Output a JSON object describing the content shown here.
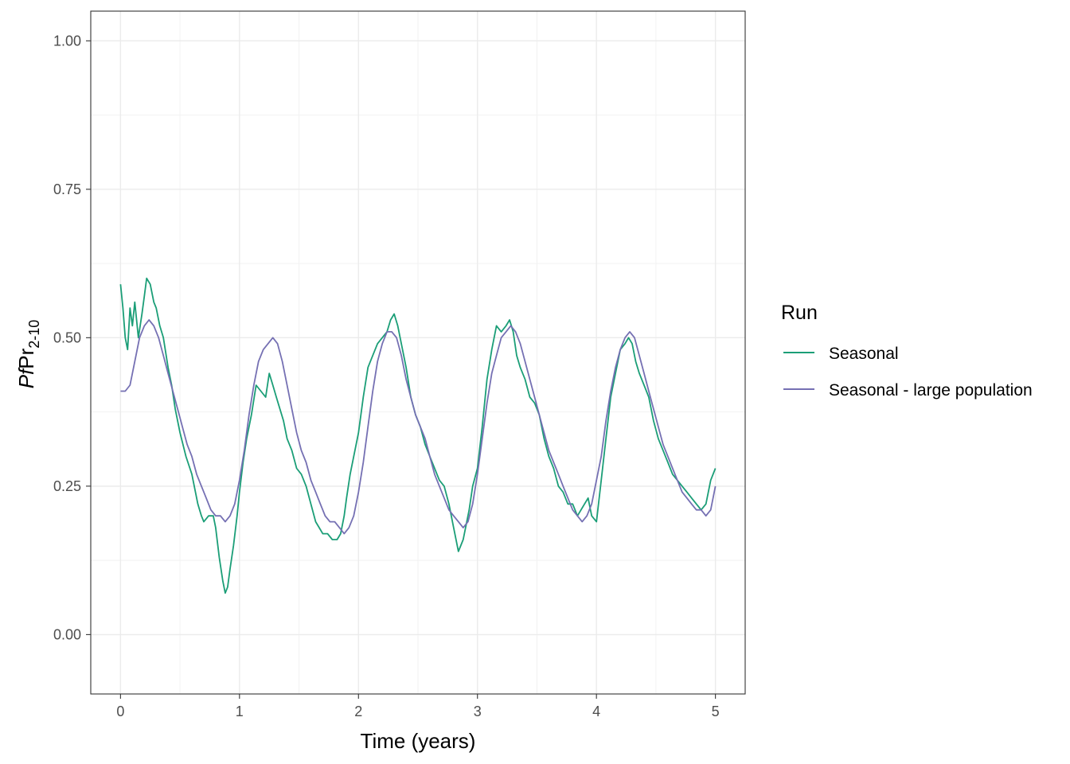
{
  "chart_data": {
    "type": "line",
    "xlabel": "Time (years)",
    "ylabel": {
      "italic": "Pf",
      "main": "Pr",
      "sub": "2-10"
    },
    "xlim": [
      -0.25,
      5.25
    ],
    "ylim": [
      -0.1,
      1.05
    ],
    "x_ticks": [
      0,
      1,
      2,
      3,
      4,
      5
    ],
    "x_tick_labels": [
      "0",
      "1",
      "2",
      "3",
      "4",
      "5"
    ],
    "y_ticks": [
      0,
      0.25,
      0.5,
      0.75,
      1.0
    ],
    "y_tick_labels": [
      "0.00",
      "0.25",
      "0.50",
      "0.75",
      "1.00"
    ],
    "grid": true,
    "legend": {
      "title": "Run",
      "position": "right"
    },
    "series": [
      {
        "name": "Seasonal",
        "color": "#1b9e77",
        "x": [
          0.0,
          0.02,
          0.04,
          0.06,
          0.08,
          0.1,
          0.12,
          0.15,
          0.18,
          0.2,
          0.22,
          0.25,
          0.28,
          0.3,
          0.33,
          0.36,
          0.4,
          0.43,
          0.46,
          0.5,
          0.55,
          0.6,
          0.65,
          0.68,
          0.7,
          0.74,
          0.78,
          0.8,
          0.83,
          0.86,
          0.88,
          0.9,
          0.92,
          0.95,
          0.98,
          1.0,
          1.03,
          1.06,
          1.1,
          1.14,
          1.18,
          1.22,
          1.25,
          1.28,
          1.31,
          1.34,
          1.37,
          1.4,
          1.44,
          1.48,
          1.52,
          1.56,
          1.6,
          1.64,
          1.67,
          1.7,
          1.74,
          1.78,
          1.82,
          1.85,
          1.88,
          1.9,
          1.93,
          1.96,
          2.0,
          2.04,
          2.08,
          2.12,
          2.16,
          2.2,
          2.24,
          2.27,
          2.3,
          2.33,
          2.36,
          2.4,
          2.44,
          2.48,
          2.52,
          2.56,
          2.6,
          2.64,
          2.68,
          2.72,
          2.76,
          2.8,
          2.84,
          2.86,
          2.88,
          2.9,
          2.93,
          2.96,
          3.0,
          3.04,
          3.08,
          3.12,
          3.16,
          3.2,
          3.24,
          3.27,
          3.3,
          3.33,
          3.36,
          3.4,
          3.44,
          3.48,
          3.52,
          3.56,
          3.6,
          3.64,
          3.68,
          3.72,
          3.76,
          3.8,
          3.84,
          3.87,
          3.9,
          3.93,
          3.96,
          4.0,
          4.04,
          4.08,
          4.12,
          4.16,
          4.2,
          4.24,
          4.27,
          4.3,
          4.33,
          4.36,
          4.4,
          4.44,
          4.48,
          4.52,
          4.56,
          4.6,
          4.64,
          4.68,
          4.72,
          4.76,
          4.8,
          4.84,
          4.88,
          4.92,
          4.96,
          5.0
        ],
        "y": [
          0.59,
          0.55,
          0.5,
          0.48,
          0.55,
          0.52,
          0.56,
          0.5,
          0.54,
          0.57,
          0.6,
          0.59,
          0.56,
          0.55,
          0.52,
          0.5,
          0.45,
          0.42,
          0.38,
          0.34,
          0.3,
          0.27,
          0.22,
          0.2,
          0.19,
          0.2,
          0.2,
          0.18,
          0.13,
          0.09,
          0.07,
          0.08,
          0.11,
          0.15,
          0.2,
          0.24,
          0.29,
          0.33,
          0.37,
          0.42,
          0.41,
          0.4,
          0.44,
          0.42,
          0.4,
          0.38,
          0.36,
          0.33,
          0.31,
          0.28,
          0.27,
          0.25,
          0.22,
          0.19,
          0.18,
          0.17,
          0.17,
          0.16,
          0.16,
          0.17,
          0.2,
          0.23,
          0.27,
          0.3,
          0.34,
          0.4,
          0.45,
          0.47,
          0.49,
          0.5,
          0.51,
          0.53,
          0.54,
          0.52,
          0.49,
          0.45,
          0.4,
          0.37,
          0.35,
          0.32,
          0.3,
          0.28,
          0.26,
          0.25,
          0.22,
          0.18,
          0.14,
          0.15,
          0.16,
          0.18,
          0.21,
          0.25,
          0.28,
          0.35,
          0.43,
          0.48,
          0.52,
          0.51,
          0.52,
          0.53,
          0.51,
          0.47,
          0.45,
          0.43,
          0.4,
          0.39,
          0.37,
          0.33,
          0.3,
          0.28,
          0.25,
          0.24,
          0.22,
          0.22,
          0.2,
          0.21,
          0.22,
          0.23,
          0.2,
          0.19,
          0.26,
          0.33,
          0.4,
          0.44,
          0.48,
          0.49,
          0.5,
          0.49,
          0.46,
          0.44,
          0.42,
          0.4,
          0.36,
          0.33,
          0.31,
          0.29,
          0.27,
          0.26,
          0.25,
          0.24,
          0.23,
          0.22,
          0.21,
          0.22,
          0.26,
          0.28
        ]
      },
      {
        "name": "Seasonal - large population",
        "color": "#7570b3",
        "x": [
          0.0,
          0.04,
          0.08,
          0.12,
          0.16,
          0.2,
          0.24,
          0.28,
          0.32,
          0.36,
          0.4,
          0.44,
          0.48,
          0.52,
          0.56,
          0.6,
          0.64,
          0.68,
          0.72,
          0.76,
          0.8,
          0.84,
          0.88,
          0.92,
          0.96,
          1.0,
          1.04,
          1.08,
          1.12,
          1.16,
          1.2,
          1.24,
          1.28,
          1.32,
          1.36,
          1.4,
          1.44,
          1.48,
          1.52,
          1.56,
          1.6,
          1.64,
          1.68,
          1.72,
          1.76,
          1.8,
          1.84,
          1.88,
          1.92,
          1.96,
          2.0,
          2.04,
          2.08,
          2.12,
          2.16,
          2.2,
          2.24,
          2.28,
          2.32,
          2.36,
          2.4,
          2.44,
          2.48,
          2.52,
          2.56,
          2.6,
          2.64,
          2.68,
          2.72,
          2.76,
          2.8,
          2.84,
          2.88,
          2.92,
          2.96,
          3.0,
          3.04,
          3.08,
          3.12,
          3.16,
          3.2,
          3.24,
          3.28,
          3.32,
          3.36,
          3.4,
          3.44,
          3.48,
          3.52,
          3.56,
          3.6,
          3.64,
          3.68,
          3.72,
          3.76,
          3.8,
          3.84,
          3.88,
          3.92,
          3.96,
          4.0,
          4.04,
          4.08,
          4.12,
          4.16,
          4.2,
          4.24,
          4.28,
          4.32,
          4.36,
          4.4,
          4.44,
          4.48,
          4.52,
          4.56,
          4.6,
          4.64,
          4.68,
          4.72,
          4.76,
          4.8,
          4.84,
          4.88,
          4.92,
          4.96,
          5.0
        ],
        "y": [
          0.41,
          0.41,
          0.42,
          0.46,
          0.5,
          0.52,
          0.53,
          0.52,
          0.5,
          0.47,
          0.44,
          0.41,
          0.38,
          0.35,
          0.32,
          0.3,
          0.27,
          0.25,
          0.23,
          0.21,
          0.2,
          0.2,
          0.19,
          0.2,
          0.22,
          0.26,
          0.31,
          0.37,
          0.42,
          0.46,
          0.48,
          0.49,
          0.5,
          0.49,
          0.46,
          0.42,
          0.38,
          0.34,
          0.31,
          0.29,
          0.26,
          0.24,
          0.22,
          0.2,
          0.19,
          0.19,
          0.18,
          0.17,
          0.18,
          0.2,
          0.24,
          0.29,
          0.35,
          0.41,
          0.46,
          0.49,
          0.51,
          0.51,
          0.5,
          0.47,
          0.43,
          0.4,
          0.37,
          0.35,
          0.33,
          0.3,
          0.27,
          0.25,
          0.23,
          0.21,
          0.2,
          0.19,
          0.18,
          0.19,
          0.22,
          0.27,
          0.33,
          0.39,
          0.44,
          0.47,
          0.5,
          0.51,
          0.52,
          0.51,
          0.49,
          0.46,
          0.43,
          0.4,
          0.37,
          0.34,
          0.31,
          0.29,
          0.27,
          0.25,
          0.23,
          0.21,
          0.2,
          0.19,
          0.2,
          0.22,
          0.26,
          0.3,
          0.36,
          0.41,
          0.45,
          0.48,
          0.5,
          0.51,
          0.5,
          0.47,
          0.44,
          0.41,
          0.38,
          0.35,
          0.32,
          0.3,
          0.28,
          0.26,
          0.24,
          0.23,
          0.22,
          0.21,
          0.21,
          0.2,
          0.21,
          0.25
        ]
      }
    ]
  }
}
